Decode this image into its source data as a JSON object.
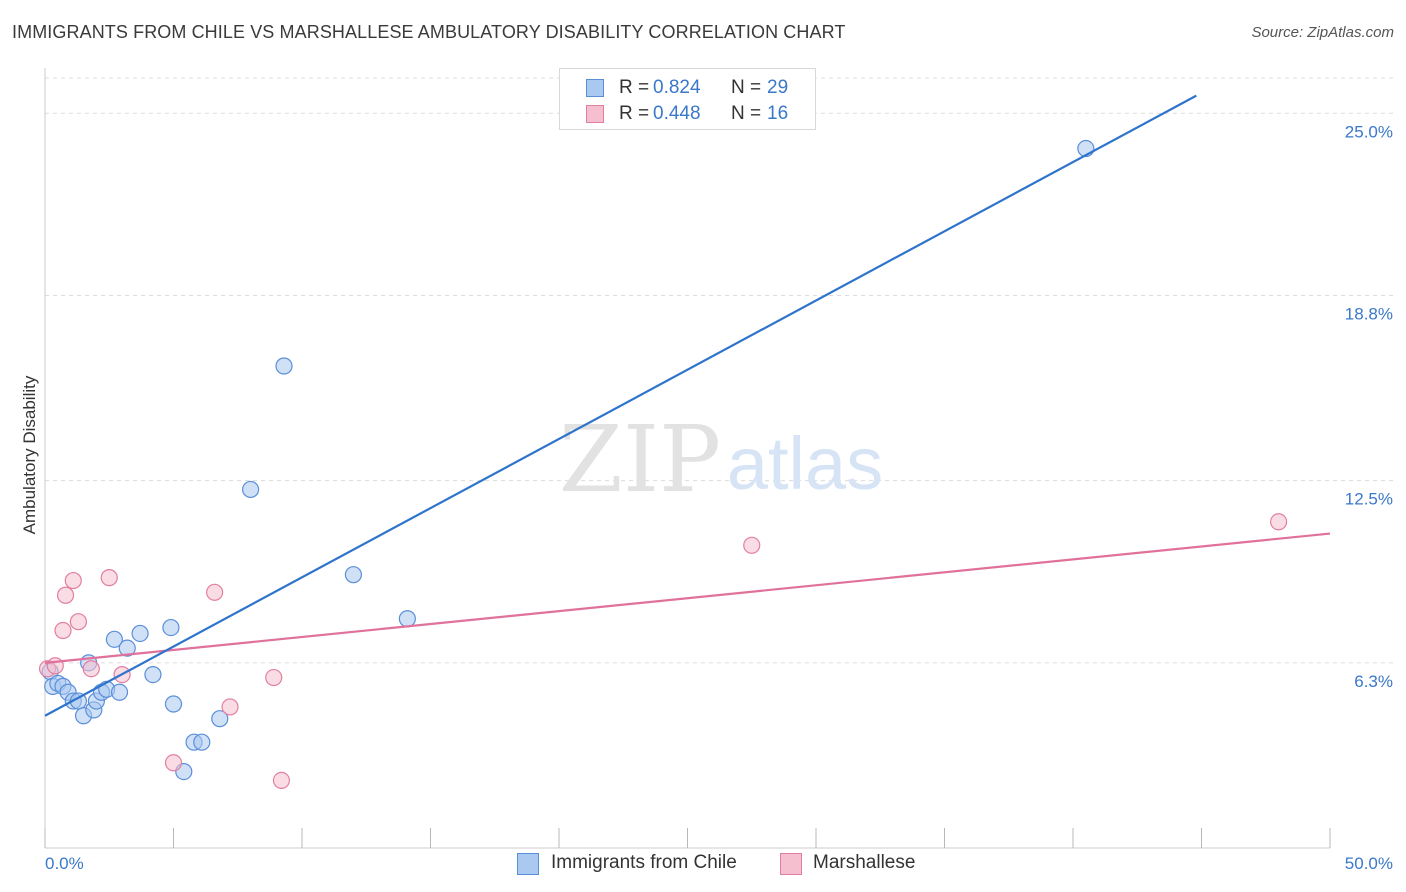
{
  "title": "IMMIGRANTS FROM CHILE VS MARSHALLESE AMBULATORY DISABILITY CORRELATION CHART",
  "source": "Source: ZipAtlas.com",
  "watermark": {
    "zip": "ZIP",
    "atlas": "atlas"
  },
  "legend": {
    "r_label": "R =",
    "n_label": "N =",
    "series": [
      {
        "r": "0.824",
        "n": "29"
      },
      {
        "r": "0.448",
        "n": "16"
      }
    ]
  },
  "colors": {
    "blue_fill": "#a9c9f0",
    "blue_stroke": "#5a8fd8",
    "blue_line": "#2f74cc",
    "pink_fill": "#f6bfd0",
    "pink_stroke": "#e27fa0",
    "pink_line": "#e0719a",
    "tick_label": "#3a78c9",
    "grid": "#dcdcdc"
  },
  "chart_data": {
    "type": "scatter",
    "title": "IMMIGRANTS FROM CHILE VS MARSHALLESE AMBULATORY DISABILITY CORRELATION CHART",
    "xlabel": "",
    "ylabel": "Ambulatory Disability",
    "xlim": [
      0,
      50
    ],
    "ylim": [
      0,
      26.2
    ],
    "x_tick_labels": [
      "0.0%",
      "50.0%"
    ],
    "y_ticks": [
      6.3,
      12.5,
      18.8,
      25.0
    ],
    "y_tick_labels": [
      "6.3%",
      "12.5%",
      "18.8%",
      "25.0%"
    ],
    "grid": true,
    "series": [
      {
        "name": "Immigrants from Chile",
        "color": "blue",
        "points": [
          [
            0.2,
            6.0
          ],
          [
            0.3,
            5.5
          ],
          [
            0.5,
            5.6
          ],
          [
            0.7,
            5.5
          ],
          [
            0.9,
            5.3
          ],
          [
            1.1,
            5.0
          ],
          [
            1.3,
            5.0
          ],
          [
            1.5,
            4.5
          ],
          [
            1.7,
            6.3
          ],
          [
            1.9,
            4.7
          ],
          [
            2.0,
            5.0
          ],
          [
            2.2,
            5.3
          ],
          [
            2.4,
            5.4
          ],
          [
            2.7,
            7.1
          ],
          [
            2.9,
            5.3
          ],
          [
            3.2,
            6.8
          ],
          [
            3.7,
            7.3
          ],
          [
            4.2,
            5.9
          ],
          [
            4.9,
            7.5
          ],
          [
            5.0,
            4.9
          ],
          [
            5.4,
            2.6
          ],
          [
            5.8,
            3.6
          ],
          [
            6.1,
            3.6
          ],
          [
            6.8,
            4.4
          ],
          [
            8.0,
            12.2
          ],
          [
            9.3,
            16.4
          ],
          [
            12.0,
            9.3
          ],
          [
            14.1,
            7.8
          ],
          [
            40.5,
            23.8
          ]
        ],
        "trend": {
          "x": [
            0,
            44.8
          ],
          "y": [
            4.5,
            25.6
          ]
        }
      },
      {
        "name": "Marshallese",
        "color": "pink",
        "points": [
          [
            0.1,
            6.1
          ],
          [
            0.4,
            6.2
          ],
          [
            0.7,
            7.4
          ],
          [
            0.8,
            8.6
          ],
          [
            1.1,
            9.1
          ],
          [
            1.3,
            7.7
          ],
          [
            1.8,
            6.1
          ],
          [
            2.5,
            9.2
          ],
          [
            3.0,
            5.9
          ],
          [
            5.0,
            2.9
          ],
          [
            6.6,
            8.7
          ],
          [
            7.2,
            4.8
          ],
          [
            8.9,
            5.8
          ],
          [
            9.2,
            2.3
          ],
          [
            27.5,
            10.3
          ],
          [
            48.0,
            11.1
          ]
        ],
        "trend": {
          "x": [
            0,
            50
          ],
          "y": [
            6.3,
            10.7
          ]
        }
      }
    ]
  },
  "bottom_legend": [
    "Immigrants from Chile",
    "Marshallese"
  ]
}
